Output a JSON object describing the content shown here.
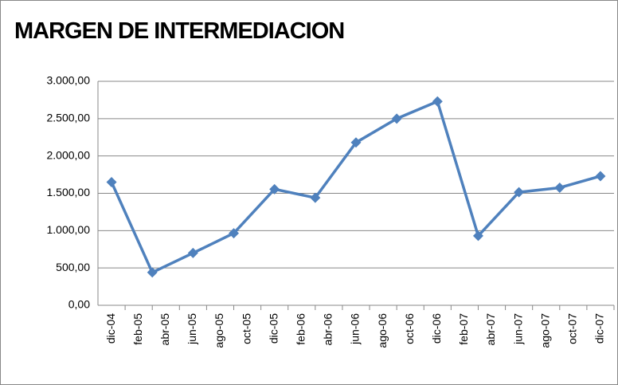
{
  "chart_data": {
    "type": "line",
    "title": "MARGEN DE INTERMEDIACION",
    "x": [
      0,
      3,
      6,
      9,
      12,
      15,
      18,
      21,
      24,
      27,
      30,
      33,
      36
    ],
    "series": [
      {
        "name": null,
        "color": "#4f81bd",
        "values": [
          1650,
          440,
          700,
          965,
          1555,
          1440,
          2180,
          2500,
          2730,
          930,
          1515,
          1575,
          1730
        ]
      }
    ],
    "xlim": [
      -1,
      37
    ],
    "xticks": [
      {
        "value": 0,
        "label": "dic-04"
      },
      {
        "value": 2,
        "label": "feb-05"
      },
      {
        "value": 4,
        "label": "abr-05"
      },
      {
        "value": 6,
        "label": "jun-05"
      },
      {
        "value": 8,
        "label": "ago-05"
      },
      {
        "value": 10,
        "label": "oct-05"
      },
      {
        "value": 12,
        "label": "dic-05"
      },
      {
        "value": 14,
        "label": "feb-06"
      },
      {
        "value": 16,
        "label": "abr-06"
      },
      {
        "value": 18,
        "label": "jun-06"
      },
      {
        "value": 20,
        "label": "ago-06"
      },
      {
        "value": 22,
        "label": "oct-06"
      },
      {
        "value": 24,
        "label": "dic-06"
      },
      {
        "value": 26,
        "label": "feb-07"
      },
      {
        "value": 28,
        "label": "abr-07"
      },
      {
        "value": 30,
        "label": "jun-07"
      },
      {
        "value": 32,
        "label": "ago-07"
      },
      {
        "value": 34,
        "label": "oct-07"
      },
      {
        "value": 36,
        "label": "dic-07"
      }
    ],
    "ylim": [
      0,
      3000
    ],
    "yticks": [
      {
        "value": 0,
        "label": "0,00"
      },
      {
        "value": 500,
        "label": "500,00"
      },
      {
        "value": 1000,
        "label": "1.000,00"
      },
      {
        "value": 1500,
        "label": "1.500,00"
      },
      {
        "value": 2000,
        "label": "2.000,00"
      },
      {
        "value": 2500,
        "label": "2.500,00"
      },
      {
        "value": 3000,
        "label": "3.000,00"
      }
    ],
    "grid": true
  }
}
